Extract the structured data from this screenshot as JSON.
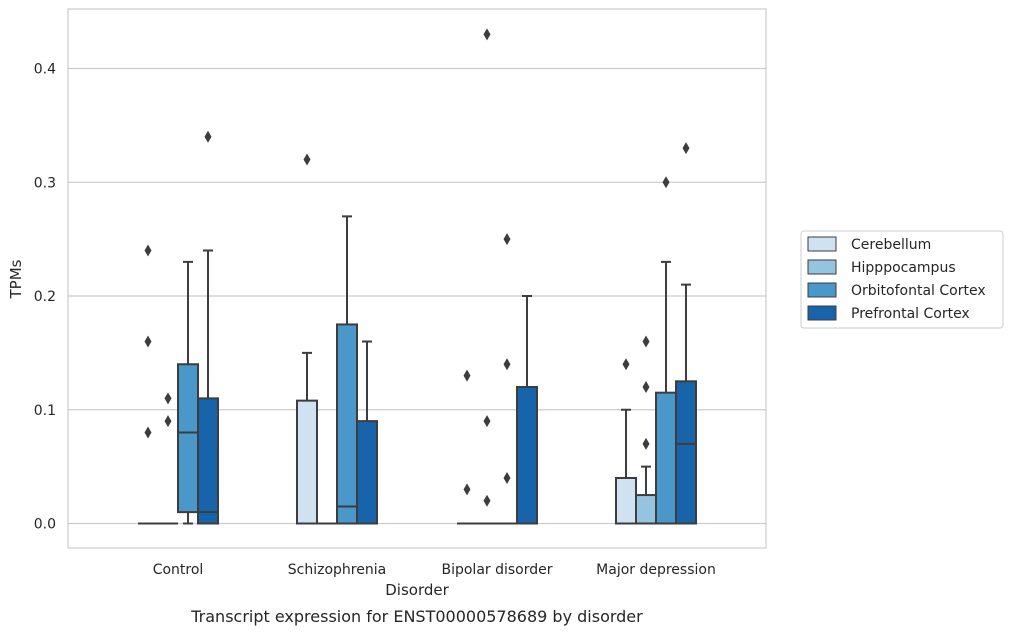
{
  "chart_data": {
    "type": "box",
    "xlabel": "Disorder",
    "ylabel": "TPMs",
    "caption": "Transcript expression for ENST00000578689 by disorder",
    "categories": [
      "Control",
      "Schizophrenia",
      "Bipolar disorder",
      "Major depression"
    ],
    "y_ticks": [
      "0.0",
      "0.1",
      "0.2",
      "0.3",
      "0.4"
    ],
    "ylim": [
      -0.021,
      0.455
    ],
    "grid": "horizontal",
    "legend_position": "right",
    "series": [
      {
        "name": "Cerebellum",
        "color": "#d0e1f2",
        "boxes": [
          {
            "category": "Control",
            "q1": 0,
            "median": 0,
            "q3": 0,
            "whisker_low": 0,
            "whisker_high": 0,
            "outliers": [
              0.24,
              0.16,
              0.08
            ]
          },
          {
            "category": "Schizophrenia",
            "q1": 0,
            "median": 0,
            "q3": 0.108,
            "whisker_low": 0,
            "whisker_high": 0.15,
            "outliers": [
              0.32
            ]
          },
          {
            "category": "Bipolar disorder",
            "q1": 0,
            "median": 0,
            "q3": 0,
            "whisker_low": 0,
            "whisker_high": 0,
            "outliers": [
              0.13,
              0.03
            ]
          },
          {
            "category": "Major depression",
            "q1": 0,
            "median": 0,
            "q3": 0.04,
            "whisker_low": 0,
            "whisker_high": 0.1,
            "outliers": [
              0.14
            ]
          }
        ]
      },
      {
        "name": "Hipppocampus",
        "color": "#94c4df",
        "boxes": [
          {
            "category": "Control",
            "q1": 0,
            "median": 0,
            "q3": 0,
            "whisker_low": 0,
            "whisker_high": 0,
            "outliers": [
              0.11,
              0.09
            ]
          },
          {
            "category": "Schizophrenia",
            "q1": 0,
            "median": 0,
            "q3": 0,
            "whisker_low": 0,
            "whisker_high": 0,
            "outliers": []
          },
          {
            "category": "Bipolar disorder",
            "q1": 0,
            "median": 0,
            "q3": 0,
            "whisker_low": 0,
            "whisker_high": 0,
            "outliers": [
              0.43,
              0.09,
              0.02
            ]
          },
          {
            "category": "Major depression",
            "q1": 0,
            "median": 0,
            "q3": 0.025,
            "whisker_low": 0,
            "whisker_high": 0.05,
            "outliers": [
              0.16,
              0.12,
              0.07
            ]
          }
        ]
      },
      {
        "name": "Orbitofontal Cortex",
        "color": "#4a98c9",
        "boxes": [
          {
            "category": "Control",
            "q1": 0.01,
            "median": 0.08,
            "q3": 0.14,
            "whisker_low": 0,
            "whisker_high": 0.23,
            "outliers": []
          },
          {
            "category": "Schizophrenia",
            "q1": 0,
            "median": 0.015,
            "q3": 0.175,
            "whisker_low": 0,
            "whisker_high": 0.27,
            "outliers": []
          },
          {
            "category": "Bipolar disorder",
            "q1": 0,
            "median": 0,
            "q3": 0,
            "whisker_low": 0,
            "whisker_high": 0,
            "outliers": [
              0.25,
              0.14,
              0.04
            ]
          },
          {
            "category": "Major depression",
            "q1": 0,
            "median": 0,
            "q3": 0.115,
            "whisker_low": 0,
            "whisker_high": 0.23,
            "outliers": [
              0.3
            ]
          }
        ]
      },
      {
        "name": "Prefrontal Cortex",
        "color": "#1764ab",
        "boxes": [
          {
            "category": "Control",
            "q1": 0,
            "median": 0.01,
            "q3": 0.11,
            "whisker_low": 0,
            "whisker_high": 0.24,
            "outliers": [
              0.34
            ]
          },
          {
            "category": "Schizophrenia",
            "q1": 0,
            "median": 0,
            "q3": 0.09,
            "whisker_low": 0,
            "whisker_high": 0.16,
            "outliers": []
          },
          {
            "category": "Bipolar disorder",
            "q1": 0,
            "median": 0,
            "q3": 0.12,
            "whisker_low": 0,
            "whisker_high": 0.2,
            "outliers": []
          },
          {
            "category": "Major depression",
            "q1": 0,
            "median": 0.07,
            "q3": 0.125,
            "whisker_low": 0,
            "whisker_high": 0.21,
            "outliers": [
              0.33
            ]
          }
        ]
      }
    ]
  }
}
